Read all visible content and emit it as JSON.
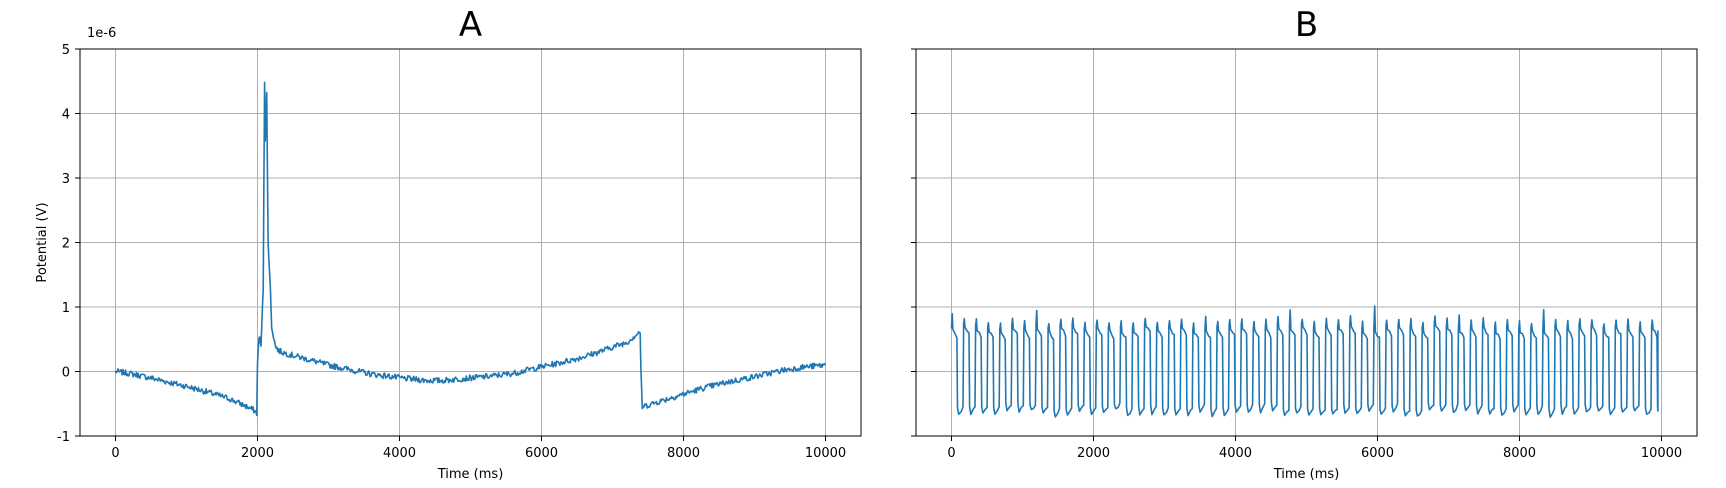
{
  "chart_data": [
    {
      "type": "line",
      "title": "A",
      "xlabel": "Time (ms)",
      "ylabel": "Potential (V)",
      "y_offset_label": "1e-6",
      "xlim": [
        -500,
        10500
      ],
      "ylim": [
        -1,
        5
      ],
      "x_ticks": [
        0,
        2000,
        4000,
        6000,
        8000,
        10000
      ],
      "x_tick_labels": [
        "0",
        "2000",
        "4000",
        "6000",
        "8000",
        "10000"
      ],
      "y_ticks": [
        -1,
        0,
        1,
        2,
        3,
        4,
        5
      ],
      "y_tick_labels": [
        "-1",
        "0",
        "1",
        "2",
        "3",
        "4",
        "5"
      ],
      "grid": true,
      "color": "#1f77b4",
      "series": [
        {
          "x": [
            0,
            200,
            500,
            800,
            1000,
            1300,
            1600,
            1800,
            1950,
            1990,
            2000,
            2020,
            2050,
            2080,
            2100,
            2110,
            2130,
            2150,
            2180,
            2200,
            2250,
            2300,
            2400,
            2600,
            2800,
            3000,
            3300,
            3600,
            3900,
            4000,
            4200,
            4400,
            4600,
            4800,
            5000,
            5300,
            5600,
            5900,
            6200,
            6500,
            6800,
            7000,
            7200,
            7390,
            7400,
            7420,
            7500,
            7700,
            8000,
            8300,
            8600,
            9000,
            9400,
            9700,
            10000
          ],
          "y": [
            0.0,
            -0.03,
            -0.1,
            -0.18,
            -0.23,
            -0.32,
            -0.42,
            -0.52,
            -0.6,
            -0.65,
            0.1,
            0.55,
            0.4,
            1.3,
            4.5,
            3.6,
            4.3,
            2.0,
            1.3,
            0.7,
            0.4,
            0.32,
            0.28,
            0.22,
            0.16,
            0.1,
            0.03,
            -0.04,
            -0.08,
            -0.1,
            -0.12,
            -0.14,
            -0.14,
            -0.12,
            -0.1,
            -0.07,
            -0.03,
            0.05,
            0.12,
            0.2,
            0.3,
            0.38,
            0.45,
            0.62,
            0.0,
            -0.55,
            -0.52,
            -0.45,
            -0.35,
            -0.25,
            -0.17,
            -0.08,
            0.02,
            0.07,
            0.1
          ]
        }
      ]
    },
    {
      "type": "line",
      "title": "B",
      "xlabel": "Time (ms)",
      "ylabel": "",
      "xlim": [
        -500,
        10500
      ],
      "ylim": [
        -1,
        5
      ],
      "x_ticks": [
        0,
        2000,
        4000,
        6000,
        8000,
        10000
      ],
      "x_tick_labels": [
        "0",
        "2000",
        "4000",
        "6000",
        "8000",
        "10000"
      ],
      "y_ticks": [
        -1,
        0,
        1,
        2,
        3,
        4,
        5
      ],
      "y_tick_labels": [],
      "grid": true,
      "color": "#1f77b4",
      "oscillation": {
        "x_start": 0,
        "x_end": 9950,
        "period_ms": 170,
        "high_value": 0.65,
        "low_value": -0.6,
        "peak_values": [
          0.9,
          0.95,
          0.8,
          0.85,
          0.98,
          1.0
        ]
      }
    }
  ]
}
